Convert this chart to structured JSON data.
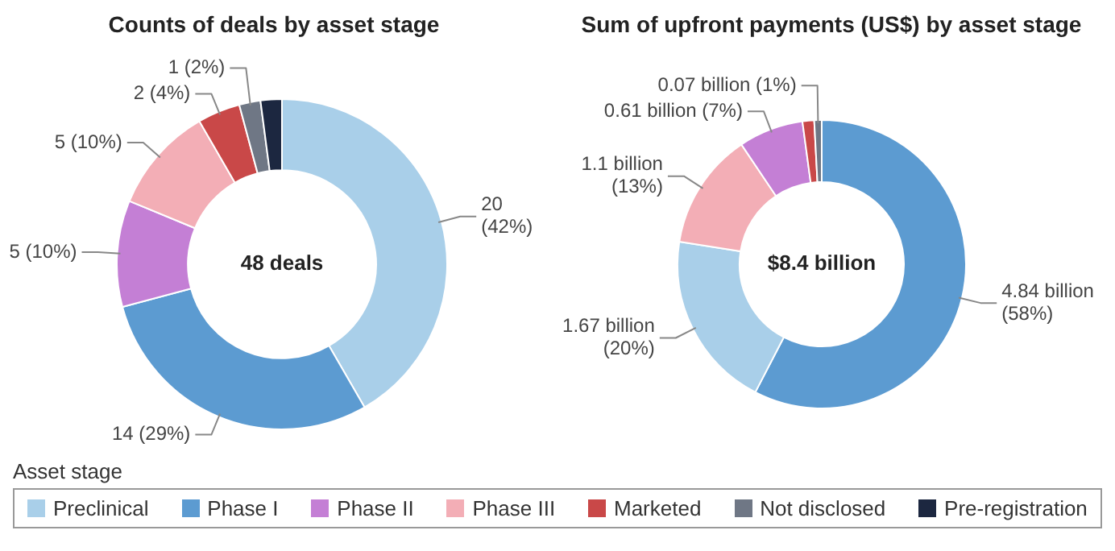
{
  "chart_data": [
    {
      "type": "donut",
      "title": "Counts of deals by asset stage",
      "categories": [
        "Preclinical",
        "Phase I",
        "Phase II",
        "Phase III",
        "Marketed",
        "Not disclosed",
        "Pre-registration"
      ],
      "values": [
        20,
        14,
        5,
        5,
        2,
        1,
        1
      ],
      "colors": [
        "#a9cfe9",
        "#5c9bd1",
        "#c47fd5",
        "#f3aeb6",
        "#c94848",
        "#6f7785",
        "#1c2740"
      ],
      "value_labels": [
        "20 (42%)",
        "14 (29%)",
        "5 (10%)",
        "5 (10%)",
        "2 (4%)",
        "1 (2%)",
        null
      ],
      "annotations": [
        "48 deals"
      ],
      "legend": "bottom",
      "legend_title": "Asset stage"
    },
    {
      "type": "donut",
      "title": "Sum of upfront payments (US$) by asset stage",
      "categories": [
        null,
        null,
        null,
        null,
        null,
        null
      ],
      "values": [
        4840000000,
        1670000000,
        1100000000,
        610000000,
        110000000,
        70000000
      ],
      "colors": [
        "#5c9bd1",
        "#a9cfe9",
        "#f3aeb6",
        "#c47fd5",
        "#c94848",
        "#6f7785"
      ],
      "value_labels": [
        "4.84 billion (58%)",
        "1.67 billion (20%)",
        "1.1 billion (13%)",
        "0.61 billion (7%)",
        null,
        "0.07 billion (1%)"
      ],
      "annotations": [
        "$8.4 billion"
      ]
    }
  ]
}
